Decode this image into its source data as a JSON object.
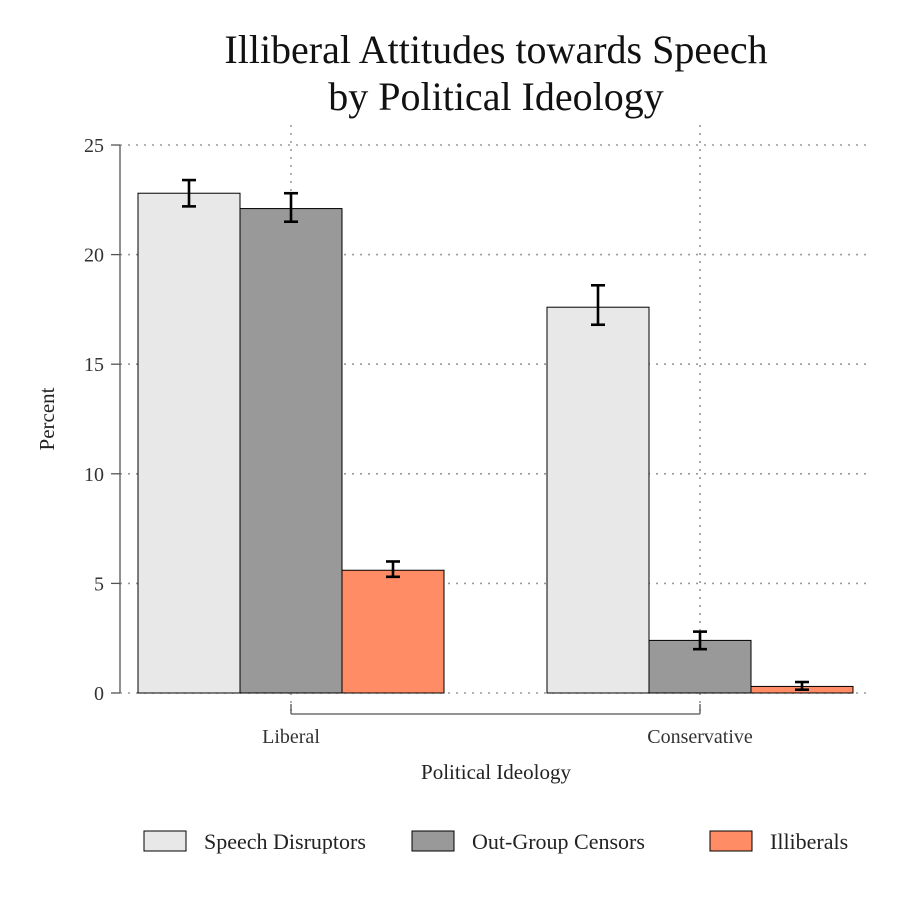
{
  "chart_data": {
    "type": "bar",
    "title_lines": [
      "Illiberal Attitudes towards Speech",
      "by Political Ideology"
    ],
    "xlabel": "Political Ideology",
    "ylabel": "Percent",
    "ylim": [
      0,
      25
    ],
    "yticks": [
      0,
      5,
      10,
      15,
      20,
      25
    ],
    "grid": true,
    "legend_position": "bottom",
    "categories": [
      "Liberal",
      "Conservative"
    ],
    "series": [
      {
        "name": "Speech Disruptors",
        "color": "#e8e8e8",
        "values": [
          22.8,
          17.6
        ],
        "ci_low": [
          22.2,
          16.8
        ],
        "ci_high": [
          23.4,
          18.6
        ]
      },
      {
        "name": "Out-Group Censors",
        "color": "#999999",
        "values": [
          22.1,
          2.4
        ],
        "ci_low": [
          21.5,
          2.0
        ],
        "ci_high": [
          22.8,
          2.8
        ]
      },
      {
        "name": "Illiberals",
        "color": "#ff8c64",
        "values": [
          5.6,
          0.3
        ],
        "ci_low": [
          5.3,
          0.15
        ],
        "ci_high": [
          6.0,
          0.5
        ]
      }
    ]
  }
}
